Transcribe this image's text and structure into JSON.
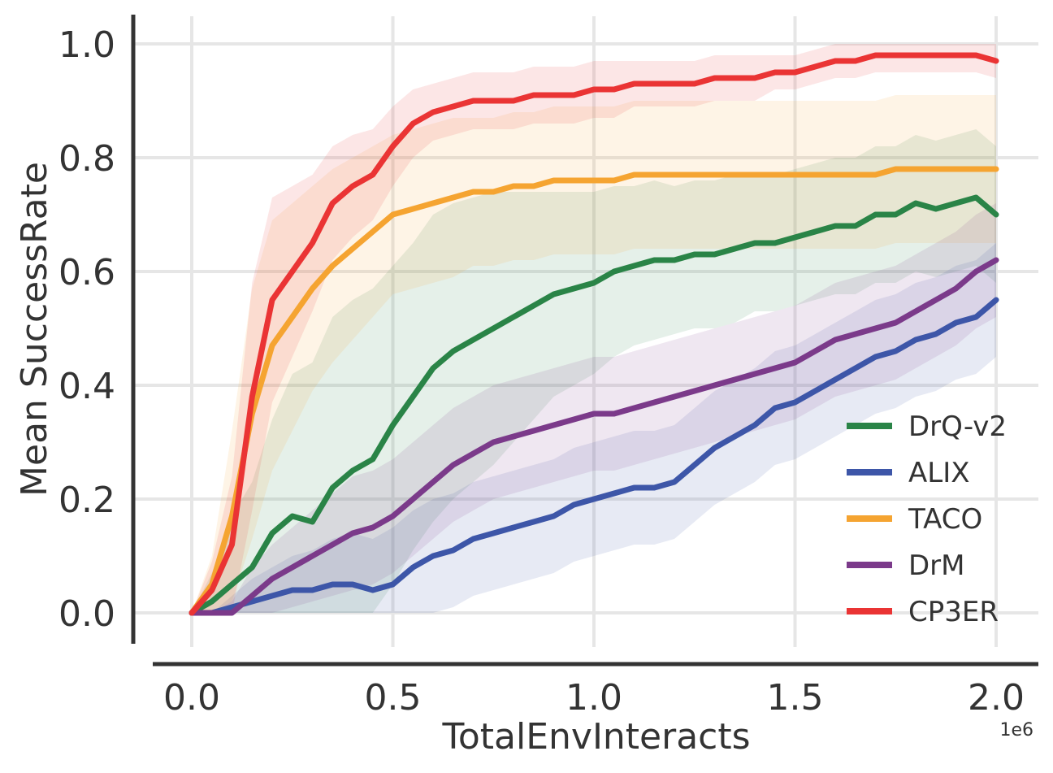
{
  "chart_data": {
    "type": "line",
    "xlabel": "TotalEnvInteracts",
    "ylabel": "Mean SuccessRate",
    "x_offset_label": "1e6",
    "xlim": [
      -0.1,
      2.1
    ],
    "ylim": [
      -0.06,
      1.05
    ],
    "x_ticks": [
      0.0,
      0.5,
      1.0,
      1.5,
      2.0
    ],
    "x_tick_labels": [
      "0.0",
      "0.5",
      "1.0",
      "1.5",
      "2.0"
    ],
    "y_ticks": [
      0.0,
      0.2,
      0.4,
      0.6,
      0.8,
      1.0
    ],
    "y_tick_labels": [
      "0.0",
      "0.2",
      "0.4",
      "0.6",
      "0.8",
      "1.0"
    ],
    "grid": true,
    "legend_position": "bottom-right",
    "x": [
      0.0,
      0.05,
      0.1,
      0.15,
      0.2,
      0.25,
      0.3,
      0.35,
      0.4,
      0.45,
      0.5,
      0.55,
      0.6,
      0.65,
      0.7,
      0.75,
      0.8,
      0.85,
      0.9,
      0.95,
      1.0,
      1.05,
      1.1,
      1.15,
      1.2,
      1.25,
      1.3,
      1.35,
      1.4,
      1.45,
      1.5,
      1.55,
      1.6,
      1.65,
      1.7,
      1.75,
      1.8,
      1.85,
      1.9,
      1.95,
      2.0
    ],
    "series": [
      {
        "name": "DrQ-v2",
        "color": "#2a8447",
        "values": [
          0.0,
          0.02,
          0.05,
          0.08,
          0.14,
          0.17,
          0.16,
          0.22,
          0.25,
          0.27,
          0.33,
          0.38,
          0.43,
          0.46,
          0.48,
          0.5,
          0.52,
          0.54,
          0.56,
          0.57,
          0.58,
          0.6,
          0.61,
          0.62,
          0.62,
          0.63,
          0.63,
          0.64,
          0.65,
          0.65,
          0.66,
          0.67,
          0.68,
          0.68,
          0.7,
          0.7,
          0.72,
          0.71,
          0.72,
          0.73,
          0.7
        ],
        "band": [
          0.0,
          0.05,
          0.12,
          0.15,
          0.2,
          0.25,
          0.28,
          0.3,
          0.3,
          0.3,
          0.28,
          0.27,
          0.27,
          0.26,
          0.25,
          0.24,
          0.22,
          0.2,
          0.18,
          0.17,
          0.16,
          0.15,
          0.14,
          0.14,
          0.13,
          0.13,
          0.13,
          0.13,
          0.12,
          0.12,
          0.12,
          0.12,
          0.12,
          0.12,
          0.12,
          0.12,
          0.12,
          0.12,
          0.12,
          0.12,
          0.12
        ]
      },
      {
        "name": "ALIX",
        "color": "#3d56a8",
        "values": [
          0.0,
          0.0,
          0.01,
          0.02,
          0.03,
          0.04,
          0.04,
          0.05,
          0.05,
          0.04,
          0.05,
          0.08,
          0.1,
          0.11,
          0.13,
          0.14,
          0.15,
          0.16,
          0.17,
          0.19,
          0.2,
          0.21,
          0.22,
          0.22,
          0.23,
          0.26,
          0.29,
          0.31,
          0.33,
          0.36,
          0.37,
          0.39,
          0.41,
          0.43,
          0.45,
          0.46,
          0.48,
          0.49,
          0.51,
          0.52,
          0.55
        ],
        "band": [
          0.0,
          0.0,
          0.02,
          0.04,
          0.05,
          0.06,
          0.07,
          0.08,
          0.09,
          0.09,
          0.1,
          0.1,
          0.1,
          0.1,
          0.1,
          0.1,
          0.1,
          0.1,
          0.1,
          0.1,
          0.1,
          0.1,
          0.1,
          0.1,
          0.1,
          0.1,
          0.1,
          0.1,
          0.1,
          0.1,
          0.1,
          0.1,
          0.1,
          0.1,
          0.1,
          0.1,
          0.1,
          0.1,
          0.1,
          0.1,
          0.1
        ]
      },
      {
        "name": "TACO",
        "color": "#f5a431",
        "values": [
          0.0,
          0.05,
          0.17,
          0.35,
          0.47,
          0.52,
          0.57,
          0.61,
          0.64,
          0.67,
          0.7,
          0.71,
          0.72,
          0.73,
          0.74,
          0.74,
          0.75,
          0.75,
          0.76,
          0.76,
          0.76,
          0.76,
          0.77,
          0.77,
          0.77,
          0.77,
          0.77,
          0.77,
          0.77,
          0.77,
          0.77,
          0.77,
          0.77,
          0.77,
          0.77,
          0.78,
          0.78,
          0.78,
          0.78,
          0.78,
          0.78
        ],
        "band": [
          0.0,
          0.05,
          0.15,
          0.22,
          0.22,
          0.2,
          0.18,
          0.17,
          0.16,
          0.15,
          0.14,
          0.14,
          0.14,
          0.14,
          0.13,
          0.13,
          0.13,
          0.13,
          0.13,
          0.13,
          0.13,
          0.13,
          0.13,
          0.13,
          0.13,
          0.13,
          0.13,
          0.13,
          0.13,
          0.13,
          0.13,
          0.13,
          0.13,
          0.13,
          0.13,
          0.13,
          0.13,
          0.13,
          0.13,
          0.13,
          0.13
        ]
      },
      {
        "name": "DrM",
        "color": "#7b3a8a",
        "values": [
          0.0,
          0.0,
          0.0,
          0.03,
          0.06,
          0.08,
          0.1,
          0.12,
          0.14,
          0.15,
          0.17,
          0.2,
          0.23,
          0.26,
          0.28,
          0.3,
          0.31,
          0.32,
          0.33,
          0.34,
          0.35,
          0.35,
          0.36,
          0.37,
          0.38,
          0.39,
          0.4,
          0.41,
          0.42,
          0.43,
          0.44,
          0.46,
          0.48,
          0.49,
          0.5,
          0.51,
          0.53,
          0.55,
          0.57,
          0.6,
          0.62
        ],
        "band": [
          0.0,
          0.0,
          0.02,
          0.05,
          0.06,
          0.07,
          0.08,
          0.09,
          0.1,
          0.1,
          0.1,
          0.1,
          0.1,
          0.1,
          0.1,
          0.1,
          0.1,
          0.1,
          0.1,
          0.1,
          0.1,
          0.1,
          0.1,
          0.1,
          0.1,
          0.1,
          0.1,
          0.1,
          0.1,
          0.1,
          0.1,
          0.1,
          0.1,
          0.1,
          0.1,
          0.1,
          0.1,
          0.1,
          0.1,
          0.1,
          0.1
        ]
      },
      {
        "name": "CP3ER",
        "color": "#ea3434",
        "values": [
          0.0,
          0.04,
          0.12,
          0.38,
          0.55,
          0.6,
          0.65,
          0.72,
          0.75,
          0.77,
          0.82,
          0.86,
          0.88,
          0.89,
          0.9,
          0.9,
          0.9,
          0.91,
          0.91,
          0.91,
          0.92,
          0.92,
          0.93,
          0.93,
          0.93,
          0.93,
          0.94,
          0.94,
          0.94,
          0.95,
          0.95,
          0.96,
          0.97,
          0.97,
          0.98,
          0.98,
          0.98,
          0.98,
          0.98,
          0.98,
          0.97
        ],
        "band": [
          0.0,
          0.05,
          0.12,
          0.2,
          0.18,
          0.15,
          0.12,
          0.1,
          0.09,
          0.08,
          0.07,
          0.06,
          0.05,
          0.05,
          0.05,
          0.05,
          0.05,
          0.05,
          0.05,
          0.05,
          0.05,
          0.05,
          0.04,
          0.04,
          0.04,
          0.04,
          0.04,
          0.04,
          0.04,
          0.03,
          0.03,
          0.03,
          0.03,
          0.03,
          0.03,
          0.03,
          0.03,
          0.03,
          0.03,
          0.03,
          0.03
        ]
      }
    ]
  }
}
